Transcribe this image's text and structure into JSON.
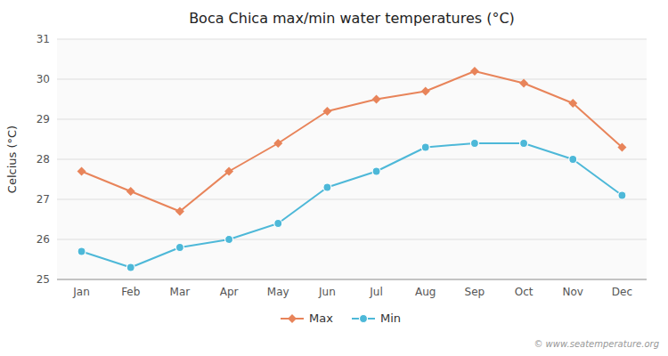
{
  "chart_data": {
    "type": "line",
    "title": "Boca Chica max/min water temperatures (°C)",
    "ylabel": "Celcius (°C)",
    "categories": [
      "Jan",
      "Feb",
      "Mar",
      "Apr",
      "May",
      "Jun",
      "Jul",
      "Aug",
      "Sep",
      "Oct",
      "Nov",
      "Dec"
    ],
    "series": [
      {
        "name": "Max",
        "color": "#e8845a",
        "marker": "diamond",
        "values": [
          27.7,
          27.2,
          26.7,
          27.7,
          28.4,
          29.2,
          29.5,
          29.7,
          30.2,
          29.9,
          29.4,
          28.3
        ]
      },
      {
        "name": "Min",
        "color": "#4db8d8",
        "marker": "circle",
        "values": [
          25.7,
          25.3,
          25.8,
          26.0,
          26.4,
          27.3,
          27.7,
          28.3,
          28.4,
          28.4,
          28.0,
          27.1
        ]
      }
    ],
    "ylim": [
      25,
      31
    ],
    "yticks": [
      25,
      26,
      27,
      28,
      29,
      30,
      31
    ],
    "grid": true,
    "legend": "bottom",
    "annotations": [
      "© www.seatemperature.org"
    ]
  }
}
